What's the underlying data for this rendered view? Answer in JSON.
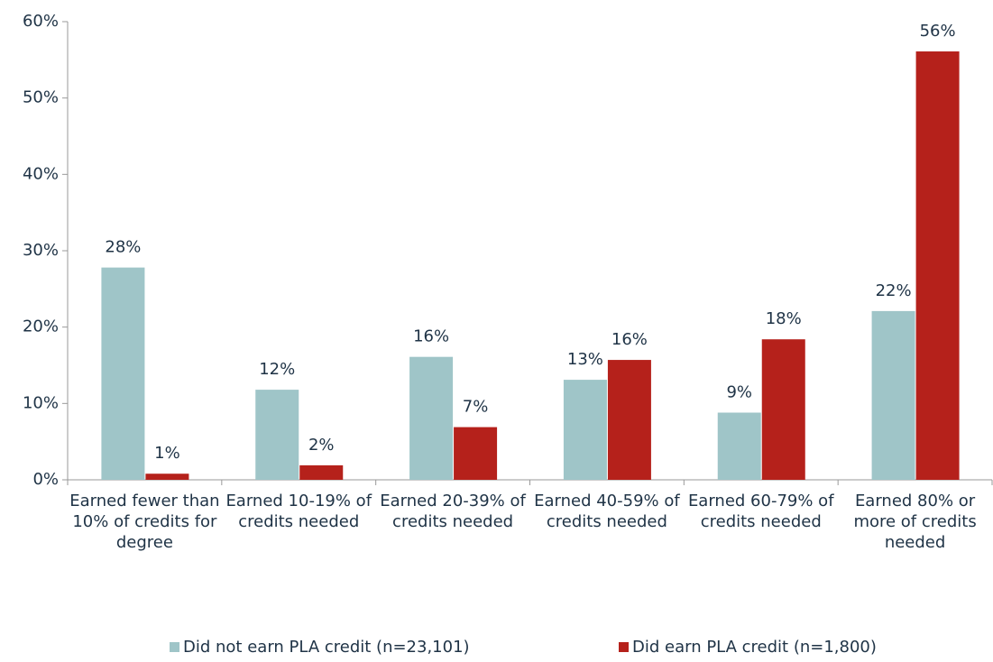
{
  "chart_data": {
    "type": "bar",
    "categories": [
      "Earned fewer than 10% of credits for degree",
      "Earned 10-19% of credits needed",
      "Earned 20-39% of credits needed",
      "Earned 40-59% of credits needed",
      "Earned 60-79% of credits needed",
      "Earned 80% or more of credits needed"
    ],
    "series": [
      {
        "name": "Did not earn PLA credit (n=23,101)",
        "color": "#9fc5c8",
        "values": [
          27.8,
          11.8,
          16.1,
          13.1,
          8.8,
          22.1
        ],
        "value_labels": [
          "28%",
          "12%",
          "16%",
          "13%",
          "9%",
          "22%"
        ]
      },
      {
        "name": "Did earn PLA credit (n=1,800)",
        "color": "#b5211b",
        "values": [
          0.8,
          1.9,
          6.9,
          15.7,
          18.4,
          56.1
        ],
        "value_labels": [
          "1%",
          "2%",
          "7%",
          "16%",
          "18%",
          "56%"
        ]
      }
    ],
    "ylim": [
      0,
      60
    ],
    "yticks": [
      {
        "value": 0,
        "label": "0%"
      },
      {
        "value": 10,
        "label": "10%"
      },
      {
        "value": 20,
        "label": "20%"
      },
      {
        "value": 30,
        "label": "30%"
      },
      {
        "value": 40,
        "label": "40%"
      },
      {
        "value": 50,
        "label": "50%"
      },
      {
        "value": 60,
        "label": "60%"
      }
    ],
    "grid": false,
    "legend": "bottom"
  }
}
